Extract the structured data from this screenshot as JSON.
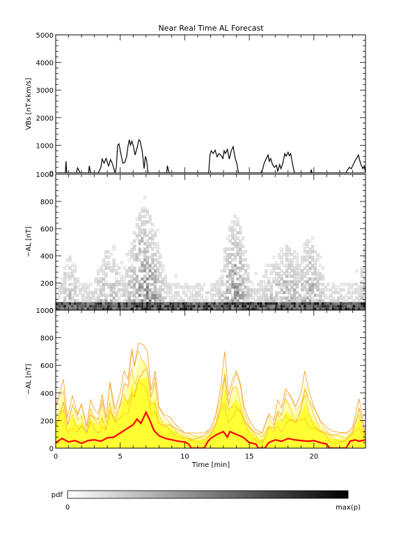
{
  "chart_data": [
    {
      "type": "line",
      "title": "Near Real Time AL Forecast",
      "ylabel": "VBs [nT×km/s]",
      "xlim": [
        0,
        24
      ],
      "ylim": [
        0,
        5000
      ],
      "yticks": [
        0,
        1000,
        2000,
        3000,
        4000,
        5000
      ],
      "grid": false,
      "series": [
        {
          "color": "#000000",
          "points": [
            [
              0,
              0
            ],
            [
              0.75,
              0
            ],
            [
              0.8,
              420
            ],
            [
              0.85,
              0
            ],
            [
              1.6,
              0
            ],
            [
              1.7,
              180
            ],
            [
              1.8,
              80
            ],
            [
              1.9,
              0
            ],
            [
              2.55,
              0
            ],
            [
              2.6,
              250
            ],
            [
              2.7,
              0
            ],
            [
              3.3,
              0
            ],
            [
              3.5,
              200
            ],
            [
              3.6,
              500
            ],
            [
              3.75,
              350
            ],
            [
              3.9,
              520
            ],
            [
              4.1,
              250
            ],
            [
              4.25,
              480
            ],
            [
              4.4,
              320
            ],
            [
              4.6,
              0
            ],
            [
              4.7,
              200
            ],
            [
              4.8,
              1000
            ],
            [
              4.9,
              1050
            ],
            [
              5.05,
              700
            ],
            [
              5.2,
              350
            ],
            [
              5.35,
              380
            ],
            [
              5.5,
              600
            ],
            [
              5.6,
              950
            ],
            [
              5.7,
              1200
            ],
            [
              5.8,
              1000
            ],
            [
              5.9,
              1150
            ],
            [
              6.0,
              1000
            ],
            [
              6.15,
              650
            ],
            [
              6.3,
              900
            ],
            [
              6.45,
              1200
            ],
            [
              6.55,
              1150
            ],
            [
              6.7,
              800
            ],
            [
              6.85,
              150
            ],
            [
              6.95,
              600
            ],
            [
              7.05,
              450
            ],
            [
              7.15,
              0
            ],
            [
              8.6,
              0
            ],
            [
              8.65,
              260
            ],
            [
              8.75,
              60
            ],
            [
              8.8,
              0
            ],
            [
              11.85,
              0
            ],
            [
              11.95,
              650
            ],
            [
              12.05,
              800
            ],
            [
              12.2,
              700
            ],
            [
              12.35,
              820
            ],
            [
              12.5,
              580
            ],
            [
              12.65,
              700
            ],
            [
              12.8,
              640
            ],
            [
              12.95,
              520
            ],
            [
              13.05,
              800
            ],
            [
              13.15,
              700
            ],
            [
              13.3,
              850
            ],
            [
              13.45,
              500
            ],
            [
              13.6,
              800
            ],
            [
              13.75,
              950
            ],
            [
              13.9,
              550
            ],
            [
              14.05,
              300
            ],
            [
              14.15,
              0
            ],
            [
              15.9,
              0
            ],
            [
              16.05,
              150
            ],
            [
              16.15,
              350
            ],
            [
              16.3,
              500
            ],
            [
              16.45,
              650
            ],
            [
              16.55,
              420
            ],
            [
              16.65,
              520
            ],
            [
              16.8,
              300
            ],
            [
              16.95,
              200
            ],
            [
              17.1,
              280
            ],
            [
              17.2,
              50
            ],
            [
              17.35,
              300
            ],
            [
              17.45,
              150
            ],
            [
              17.6,
              350
            ],
            [
              17.75,
              700
            ],
            [
              17.85,
              600
            ],
            [
              18.0,
              750
            ],
            [
              18.1,
              620
            ],
            [
              18.2,
              700
            ],
            [
              18.3,
              450
            ],
            [
              18.4,
              200
            ],
            [
              18.5,
              0
            ],
            [
              19.75,
              0
            ],
            [
              19.8,
              120
            ],
            [
              19.85,
              0
            ],
            [
              22.5,
              0
            ],
            [
              22.6,
              100
            ],
            [
              22.75,
              200
            ],
            [
              22.9,
              150
            ],
            [
              23.05,
              300
            ],
            [
              23.2,
              450
            ],
            [
              23.35,
              550
            ],
            [
              23.45,
              650
            ],
            [
              23.55,
              450
            ],
            [
              23.65,
              300
            ],
            [
              23.8,
              150
            ],
            [
              23.9,
              250
            ],
            [
              24,
              0
            ]
          ]
        }
      ]
    },
    {
      "type": "heatmap",
      "ylabel": "−AL [nT]",
      "xlim": [
        0,
        24
      ],
      "ylim": [
        0,
        1000
      ],
      "yticks": [
        0,
        200,
        400,
        600,
        800,
        1000
      ],
      "colormap": [
        "#ffffff",
        "#000000"
      ],
      "bin_width_x": 0.2,
      "bin_height_y": 20,
      "activity_peaks": [
        {
          "x": 6.8,
          "width": 1.4,
          "peak_AL": 780
        },
        {
          "x": 13.8,
          "width": 1.1,
          "peak_AL": 700
        },
        {
          "x": 17.8,
          "width": 2.0,
          "peak_AL": 450
        },
        {
          "x": 19.6,
          "width": 1.0,
          "peak_AL": 540
        },
        {
          "x": 23.8,
          "width": 0.4,
          "peak_AL": 380
        },
        {
          "x": 4.0,
          "width": 1.2,
          "peak_AL": 400
        },
        {
          "x": 1.0,
          "width": 0.8,
          "peak_AL": 350
        }
      ]
    },
    {
      "type": "area",
      "ylabel": "−AL [nT]",
      "xlabel": "Time [min]",
      "xlim": [
        0,
        24
      ],
      "ylim": [
        0,
        1000
      ],
      "xticks": [
        0,
        5,
        10,
        15,
        20
      ],
      "yticks": [
        0,
        200,
        400,
        600,
        800,
        1000
      ],
      "colors": {
        "envelope": "#f5a623",
        "band": "#ffff33",
        "band_light": "#ffffaa",
        "median": "#ff0000"
      },
      "median": [
        [
          0,
          40
        ],
        [
          0.5,
          70
        ],
        [
          1,
          45
        ],
        [
          1.5,
          55
        ],
        [
          2,
          35
        ],
        [
          2.5,
          55
        ],
        [
          3,
          60
        ],
        [
          3.5,
          50
        ],
        [
          4,
          75
        ],
        [
          4.5,
          80
        ],
        [
          5,
          110
        ],
        [
          5.5,
          140
        ],
        [
          6,
          170
        ],
        [
          6.3,
          210
        ],
        [
          6.6,
          180
        ],
        [
          7,
          260
        ],
        [
          7.3,
          200
        ],
        [
          7.6,
          130
        ],
        [
          8,
          90
        ],
        [
          8.5,
          70
        ],
        [
          9,
          60
        ],
        [
          9.5,
          50
        ],
        [
          10,
          45
        ],
        [
          10.3,
          30
        ],
        [
          10.5,
          0
        ],
        [
          11.5,
          0
        ],
        [
          11.8,
          50
        ],
        [
          12,
          70
        ],
        [
          12.5,
          100
        ],
        [
          13,
          120
        ],
        [
          13.3,
          80
        ],
        [
          13.5,
          120
        ],
        [
          14,
          100
        ],
        [
          14.5,
          80
        ],
        [
          15,
          40
        ],
        [
          15.5,
          30
        ],
        [
          15.7,
          0
        ],
        [
          16.2,
          0
        ],
        [
          16.5,
          40
        ],
        [
          17,
          60
        ],
        [
          17.5,
          50
        ],
        [
          18,
          70
        ],
        [
          18.5,
          60
        ],
        [
          19,
          55
        ],
        [
          19.5,
          50
        ],
        [
          20,
          55
        ],
        [
          20.5,
          40
        ],
        [
          21,
          30
        ],
        [
          21.2,
          0
        ],
        [
          22.5,
          0
        ],
        [
          22.8,
          50
        ],
        [
          23.2,
          60
        ],
        [
          23.5,
          50
        ],
        [
          24,
          60
        ]
      ],
      "upper_envelope": [
        [
          0,
          300
        ],
        [
          0.6,
          500
        ],
        [
          0.9,
          220
        ],
        [
          1.3,
          380
        ],
        [
          1.7,
          250
        ],
        [
          2,
          320
        ],
        [
          2.4,
          160
        ],
        [
          2.7,
          350
        ],
        [
          3.0,
          280
        ],
        [
          3.3,
          250
        ],
        [
          3.6,
          390
        ],
        [
          3.9,
          220
        ],
        [
          4.2,
          480
        ],
        [
          4.6,
          280
        ],
        [
          5.0,
          400
        ],
        [
          5.3,
          560
        ],
        [
          5.6,
          500
        ],
        [
          5.9,
          720
        ],
        [
          6.1,
          600
        ],
        [
          6.4,
          760
        ],
        [
          6.8,
          750
        ],
        [
          7.1,
          700
        ],
        [
          7.4,
          420
        ],
        [
          7.7,
          560
        ],
        [
          8.0,
          300
        ],
        [
          8.4,
          240
        ],
        [
          8.8,
          230
        ],
        [
          9.2,
          180
        ],
        [
          9.5,
          150
        ],
        [
          10,
          110
        ],
        [
          11,
          110
        ],
        [
          11.5,
          110
        ],
        [
          12,
          140
        ],
        [
          12.4,
          240
        ],
        [
          12.8,
          450
        ],
        [
          13.1,
          700
        ],
        [
          13.4,
          380
        ],
        [
          13.7,
          500
        ],
        [
          14.0,
          560
        ],
        [
          14.3,
          470
        ],
        [
          14.6,
          300
        ],
        [
          15,
          200
        ],
        [
          15.4,
          140
        ],
        [
          16,
          110
        ],
        [
          16.5,
          250
        ],
        [
          16.9,
          200
        ],
        [
          17.2,
          350
        ],
        [
          17.5,
          290
        ],
        [
          17.8,
          430
        ],
        [
          18.2,
          380
        ],
        [
          18.6,
          300
        ],
        [
          19,
          400
        ],
        [
          19.3,
          560
        ],
        [
          19.6,
          420
        ],
        [
          20,
          300
        ],
        [
          20.5,
          200
        ],
        [
          21,
          150
        ],
        [
          21.5,
          120
        ],
        [
          22.5,
          110
        ],
        [
          23,
          150
        ],
        [
          23.5,
          360
        ],
        [
          23.8,
          200
        ],
        [
          24,
          80
        ]
      ]
    },
    {
      "type": "colorbar",
      "label": "pdf",
      "min_label": "0",
      "max_label": "max(p)",
      "colormap": [
        "#ffffff",
        "#000000"
      ]
    }
  ]
}
